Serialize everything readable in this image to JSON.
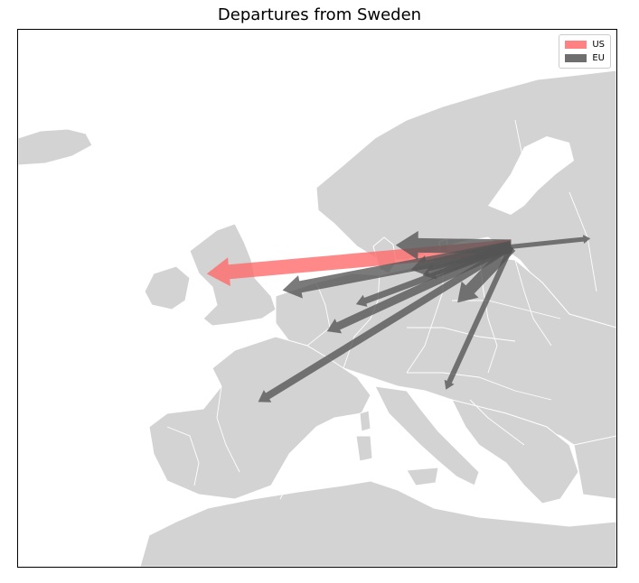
{
  "title": "Departures from Sweden",
  "legend": [
    {
      "label": "US",
      "color": "#ff6b6b"
    },
    {
      "label": "EU",
      "color": "#555555"
    }
  ],
  "colors": {
    "land": "#d3d3d3",
    "border": "#ffffff",
    "us": "#ff6b6b",
    "eu": "#555555"
  },
  "origin": {
    "lon": 18.1,
    "lat": 59.3
  },
  "routes": [
    {
      "region": "US",
      "lon": -8.0,
      "lat": 56.0,
      "width": 16
    },
    {
      "region": "EU",
      "lon": 8.2,
      "lat": 59.5,
      "width": 16
    },
    {
      "region": "EU",
      "lon": -1.5,
      "lat": 54.0,
      "width": 13
    },
    {
      "region": "EU",
      "lon": 9.5,
      "lat": 56.5,
      "width": 12
    },
    {
      "region": "EU",
      "lon": 10.5,
      "lat": 55.8,
      "width": 9
    },
    {
      "region": "EU",
      "lon": 13.5,
      "lat": 52.5,
      "width": 13
    },
    {
      "region": "EU",
      "lon": 4.8,
      "lat": 52.3,
      "width": 7
    },
    {
      "region": "EU",
      "lon": 2.3,
      "lat": 49.0,
      "width": 9
    },
    {
      "region": "EU",
      "lon": -3.6,
      "lat": 40.4,
      "width": 8
    },
    {
      "region": "EU",
      "lon": 12.5,
      "lat": 41.9,
      "width": 6
    },
    {
      "region": "EU",
      "lon": 24.9,
      "lat": 60.3,
      "width": 5
    }
  ]
}
